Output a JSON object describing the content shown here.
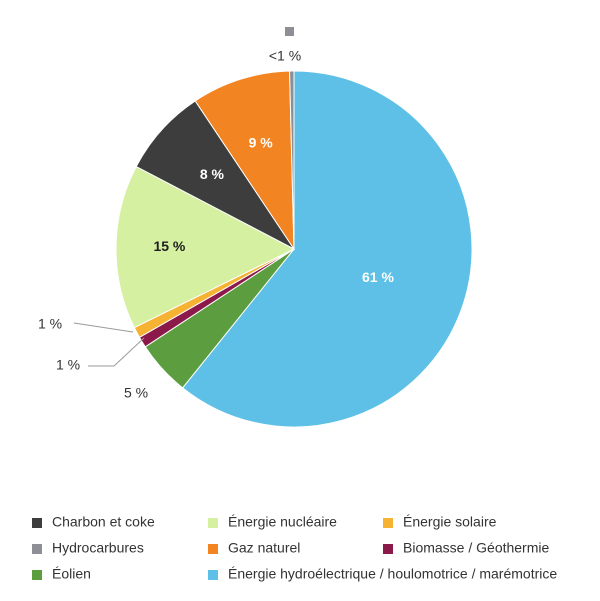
{
  "chart_data": {
    "type": "pie",
    "title": "",
    "slices": [
      {
        "name": "Énergie hydroélectrique / houlomotrice / marémotrice",
        "value": 61,
        "label": "61 %",
        "color": "#5ec0e6"
      },
      {
        "name": "Éolien",
        "value": 5,
        "label": "5 %",
        "color": "#5c9e3f"
      },
      {
        "name": "Biomasse / Géothermie",
        "value": 1,
        "label": "1 %",
        "color": "#8b1a4a"
      },
      {
        "name": "Énergie solaire",
        "value": 1,
        "label": "1 %",
        "color": "#f5b233"
      },
      {
        "name": "Énergie nucléaire",
        "value": 15,
        "label": "15 %",
        "color": "#d4f0a0"
      },
      {
        "name": "Charbon et coke",
        "value": 8,
        "label": "8 %",
        "color": "#3d3d3d"
      },
      {
        "name": "Gaz naturel",
        "value": 9,
        "label": "9 %",
        "color": "#f28421"
      },
      {
        "name": "Hydrocarbures",
        "value": 0.4,
        "label": "<1 %",
        "color": "#8e8e96"
      }
    ],
    "legend_position": "bottom",
    "legend": [
      {
        "name": "Charbon et coke",
        "color": "#3d3d3d"
      },
      {
        "name": "Énergie nucléaire",
        "color": "#d4f0a0"
      },
      {
        "name": "Énergie solaire",
        "color": "#f5b233"
      },
      {
        "name": "Hydrocarbures",
        "color": "#8e8e96"
      },
      {
        "name": "Gaz naturel",
        "color": "#f28421"
      },
      {
        "name": "Biomasse / Géothermie",
        "color": "#8b1a4a"
      },
      {
        "name": "Éolien",
        "color": "#5c9e3f"
      },
      {
        "name": "Énergie hydroélectrique / houlomotrice / marémotrice",
        "color": "#5ec0e6"
      }
    ]
  }
}
